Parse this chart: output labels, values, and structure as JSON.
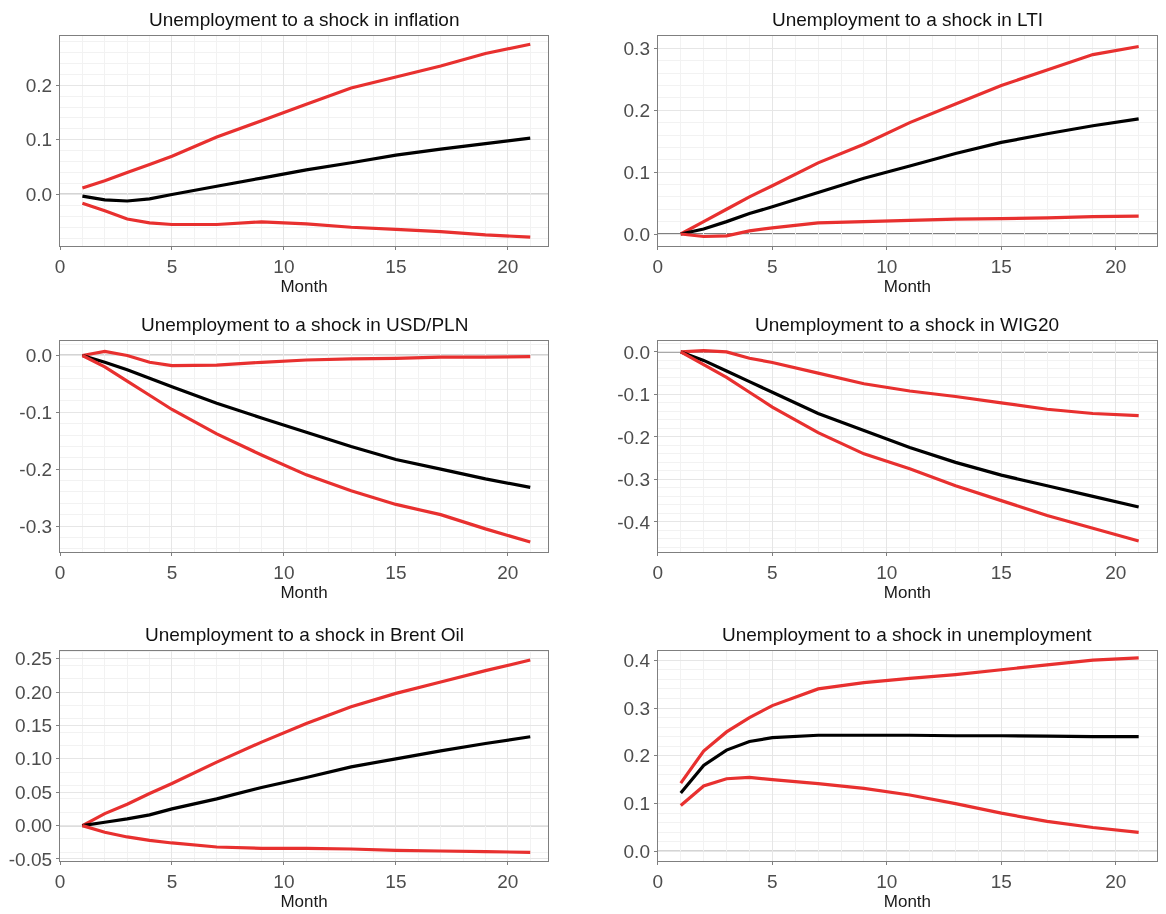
{
  "chart_data": [
    {
      "type": "line",
      "title": "Unemployment to a shock in inflation",
      "xlabel": "Month",
      "x": [
        1,
        2,
        3,
        4,
        5,
        7,
        9,
        11,
        13,
        15,
        17,
        19,
        21
      ],
      "xlim": [
        0,
        21.8
      ],
      "xticks": [
        0,
        5,
        10,
        15,
        20
      ],
      "ylim": [
        -0.095,
        0.29
      ],
      "yticks": [
        {
          "value": 0,
          "label": "0.0"
        },
        0.1,
        0.2
      ],
      "grid": true,
      "marker": "none",
      "line_style": "solid",
      "ref_lines": [
        {
          "axis": "y",
          "value": 0,
          "color": "#555555"
        }
      ],
      "series": [
        {
          "color": "#e8302f",
          "values": [
            0.012,
            0.025,
            0.04,
            0.055,
            0.07,
            0.105,
            0.135,
            0.165,
            0.195,
            0.215,
            0.235,
            0.258,
            0.275
          ]
        },
        {
          "color": "#000000",
          "values": [
            -0.003,
            -0.01,
            -0.012,
            -0.008,
            0.0,
            0.015,
            0.03,
            0.045,
            0.058,
            0.072,
            0.083,
            0.093,
            0.103
          ]
        },
        {
          "color": "#e8302f",
          "values": [
            -0.016,
            -0.03,
            -0.045,
            -0.052,
            -0.055,
            -0.055,
            -0.05,
            -0.054,
            -0.06,
            -0.064,
            -0.068,
            -0.074,
            -0.078
          ]
        }
      ]
    },
    {
      "type": "line",
      "title": "Unemployment to a shock in LTI",
      "xlabel": "Month",
      "x": [
        1,
        2,
        3,
        4,
        5,
        7,
        9,
        11,
        13,
        15,
        17,
        19,
        21
      ],
      "xlim": [
        0,
        21.8
      ],
      "xticks": [
        0,
        5,
        10,
        15,
        20
      ],
      "ylim": [
        -0.02,
        0.32
      ],
      "yticks": [
        {
          "value": 0,
          "label": "0.0"
        },
        0.1,
        0.2,
        0.3
      ],
      "grid": true,
      "marker": "none",
      "line_style": "solid",
      "ref_lines": [
        {
          "axis": "y",
          "value": 0,
          "color": "#555555"
        }
      ],
      "series": [
        {
          "color": "#e8302f",
          "values": [
            0,
            0.02,
            0.04,
            0.06,
            0.078,
            0.115,
            0.145,
            0.18,
            0.21,
            0.24,
            0.265,
            0.29,
            0.303
          ]
        },
        {
          "color": "#000000",
          "values": [
            0,
            0.008,
            0.02,
            0.033,
            0.044,
            0.067,
            0.09,
            0.11,
            0.13,
            0.148,
            0.162,
            0.175,
            0.186
          ]
        },
        {
          "color": "#e8302f",
          "values": [
            0,
            -0.004,
            -0.003,
            0.005,
            0.01,
            0.018,
            0.02,
            0.022,
            0.024,
            0.025,
            0.026,
            0.028,
            0.029
          ]
        }
      ]
    },
    {
      "type": "line",
      "title": "Unemployment to a shock in USD/PLN",
      "xlabel": "Month",
      "x": [
        1,
        2,
        3,
        4,
        5,
        7,
        9,
        11,
        13,
        15,
        17,
        19,
        21
      ],
      "xlim": [
        0,
        21.8
      ],
      "xticks": [
        0,
        5,
        10,
        15,
        20
      ],
      "ylim": [
        -0.345,
        0.025
      ],
      "yticks": [
        -0.3,
        -0.2,
        -0.1,
        {
          "value": 0,
          "label": "0.0"
        }
      ],
      "grid": true,
      "marker": "none",
      "line_style": "solid",
      "ref_lines": [
        {
          "axis": "y",
          "value": 0,
          "color": "#555555"
        }
      ],
      "series": [
        {
          "color": "#e8302f",
          "values": [
            0,
            0.007,
            0.0,
            -0.012,
            -0.018,
            -0.017,
            -0.012,
            -0.008,
            -0.006,
            -0.005,
            -0.003,
            -0.003,
            -0.002
          ]
        },
        {
          "color": "#000000",
          "values": [
            0,
            -0.012,
            -0.025,
            -0.04,
            -0.055,
            -0.084,
            -0.11,
            -0.135,
            -0.16,
            -0.183,
            -0.2,
            -0.217,
            -0.232
          ]
        },
        {
          "color": "#e8302f",
          "values": [
            0,
            -0.02,
            -0.045,
            -0.07,
            -0.095,
            -0.138,
            -0.175,
            -0.21,
            -0.238,
            -0.262,
            -0.28,
            -0.305,
            -0.328
          ]
        }
      ]
    },
    {
      "type": "line",
      "title": "Unemployment to a shock in WIG20",
      "xlabel": "Month",
      "x": [
        1,
        2,
        3,
        4,
        5,
        7,
        9,
        11,
        13,
        15,
        17,
        19,
        21
      ],
      "xlim": [
        0,
        21.8
      ],
      "xticks": [
        0,
        5,
        10,
        15,
        20
      ],
      "ylim": [
        -0.47,
        0.025
      ],
      "yticks": [
        -0.4,
        -0.3,
        -0.2,
        -0.1,
        {
          "value": 0,
          "label": "0.0"
        }
      ],
      "grid": true,
      "marker": "none",
      "line_style": "solid",
      "ref_lines": [
        {
          "axis": "y",
          "value": 0,
          "color": "#555555"
        }
      ],
      "series": [
        {
          "color": "#e8302f",
          "values": [
            0,
            0.003,
            0.0,
            -0.015,
            -0.025,
            -0.05,
            -0.075,
            -0.092,
            -0.105,
            -0.12,
            -0.135,
            -0.145,
            -0.15
          ]
        },
        {
          "color": "#000000",
          "values": [
            0,
            -0.02,
            -0.045,
            -0.07,
            -0.095,
            -0.145,
            -0.185,
            -0.225,
            -0.26,
            -0.29,
            -0.315,
            -0.34,
            -0.365
          ]
        },
        {
          "color": "#e8302f",
          "values": [
            0,
            -0.03,
            -0.06,
            -0.095,
            -0.13,
            -0.19,
            -0.24,
            -0.275,
            -0.315,
            -0.35,
            -0.385,
            -0.415,
            -0.445
          ]
        }
      ]
    },
    {
      "type": "line",
      "title": "Unemployment to a shock in Brent Oil",
      "xlabel": "Month",
      "x": [
        1,
        2,
        3,
        4,
        5,
        7,
        9,
        11,
        13,
        15,
        17,
        19,
        21
      ],
      "xlim": [
        0,
        21.8
      ],
      "xticks": [
        0,
        5,
        10,
        15,
        20
      ],
      "ylim": [
        -0.053,
        0.262
      ],
      "yticks": [
        {
          "value": -0.05,
          "label": "-0.05"
        },
        {
          "value": 0,
          "label": "0.00"
        },
        {
          "value": 0.05,
          "label": "0.05"
        },
        {
          "value": 0.1,
          "label": "0.10"
        },
        {
          "value": 0.15,
          "label": "0.15"
        },
        {
          "value": 0.2,
          "label": "0.20"
        },
        {
          "value": 0.25,
          "label": "0.25"
        }
      ],
      "grid": true,
      "marker": "none",
      "line_style": "solid",
      "ref_lines": [
        {
          "axis": "y",
          "value": 0,
          "color": "#777777"
        }
      ],
      "series": [
        {
          "color": "#e8302f",
          "values": [
            0,
            0.018,
            0.032,
            0.048,
            0.063,
            0.095,
            0.125,
            0.153,
            0.178,
            0.198,
            0.215,
            0.232,
            0.248
          ]
        },
        {
          "color": "#000000",
          "values": [
            0,
            0.005,
            0.01,
            0.016,
            0.025,
            0.04,
            0.057,
            0.072,
            0.088,
            0.1,
            0.112,
            0.123,
            0.133
          ]
        },
        {
          "color": "#e8302f",
          "values": [
            0,
            -0.01,
            -0.017,
            -0.022,
            -0.026,
            -0.032,
            -0.034,
            -0.034,
            -0.035,
            -0.037,
            -0.038,
            -0.039,
            -0.04
          ]
        }
      ]
    },
    {
      "type": "line",
      "title": "Unemployment to a shock in unemployment",
      "xlabel": "Month",
      "x": [
        1,
        2,
        3,
        4,
        5,
        7,
        9,
        11,
        13,
        15,
        17,
        19,
        21
      ],
      "xlim": [
        0,
        21.8
      ],
      "xticks": [
        0,
        5,
        10,
        15,
        20
      ],
      "ylim": [
        -0.02,
        0.42
      ],
      "yticks": [
        {
          "value": 0,
          "label": "0.0"
        },
        0.1,
        0.2,
        0.3,
        0.4
      ],
      "grid": true,
      "marker": "none",
      "line_style": "solid",
      "ref_lines": [
        {
          "axis": "y",
          "value": 0,
          "color": "#555555"
        }
      ],
      "series": [
        {
          "color": "#e8302f",
          "values": [
            0.143,
            0.21,
            0.25,
            0.28,
            0.305,
            0.34,
            0.353,
            0.362,
            0.37,
            0.38,
            0.39,
            0.4,
            0.405
          ]
        },
        {
          "color": "#000000",
          "values": [
            0.122,
            0.18,
            0.212,
            0.23,
            0.238,
            0.243,
            0.243,
            0.243,
            0.242,
            0.242,
            0.241,
            0.24,
            0.24
          ]
        },
        {
          "color": "#e8302f",
          "values": [
            0.096,
            0.137,
            0.152,
            0.155,
            0.15,
            0.142,
            0.132,
            0.118,
            0.1,
            0.08,
            0.063,
            0.05,
            0.04
          ]
        }
      ]
    }
  ]
}
